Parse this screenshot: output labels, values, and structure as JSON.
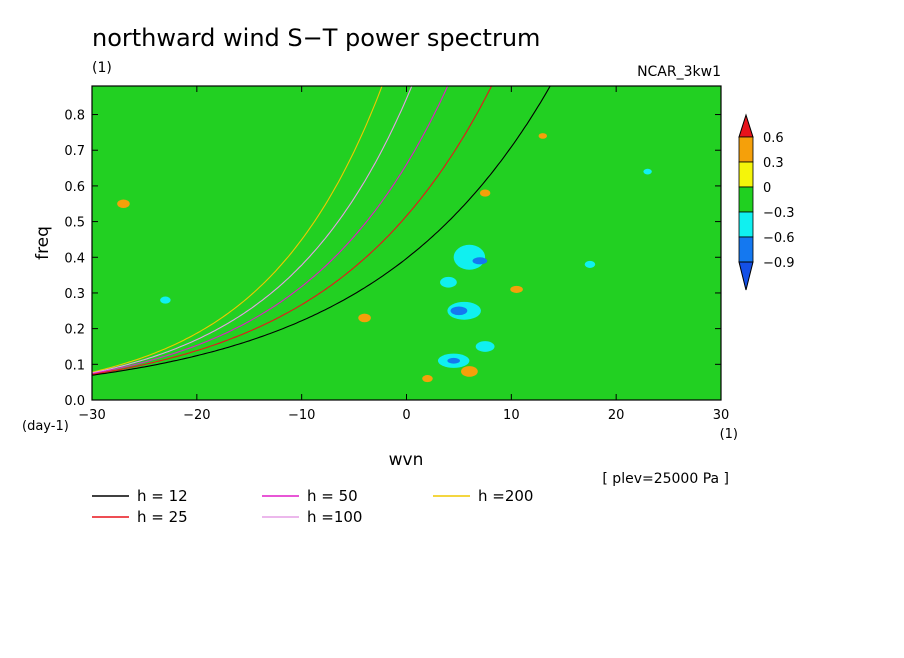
{
  "chart_data": {
    "type": "heatmap",
    "title": "northward wind S−T power spectrum",
    "units_label": "(1)",
    "model_label": "NCAR_3kw1",
    "xlabel": "wvn",
    "ylabel": "freq",
    "x_units": "(1)",
    "y_units": "(day-1)",
    "xlim": [
      -30,
      30
    ],
    "ylim": [
      0,
      0.88
    ],
    "x_ticks": [
      "−30",
      "−20",
      "−10",
      "0",
      "10",
      "20",
      "30"
    ],
    "y_ticks": [
      "0.0",
      "0.1",
      "0.2",
      "0.3",
      "0.4",
      "0.5",
      "0.6",
      "0.7",
      "0.8"
    ],
    "x_tick_values": [
      -30,
      -20,
      -10,
      0,
      10,
      20,
      30
    ],
    "y_tick_values": [
      0,
      0.1,
      0.2,
      0.3,
      0.4,
      0.5,
      0.6,
      0.7,
      0.8
    ],
    "level_note": "[ plev=25000 Pa ]",
    "colorbar": {
      "labels": [
        "0.6",
        "0.3",
        "0",
        "−0.3",
        "−0.6",
        "−0.9"
      ],
      "levels": [
        0.6,
        0.3,
        0,
        -0.3,
        -0.6,
        -0.9
      ],
      "colors": [
        "#e8141c",
        "#f5a00a",
        "#f5f50a",
        "#20d020",
        "#10f0f0",
        "#1478f0",
        "#1450e6"
      ]
    },
    "dispersion_curves": [
      {
        "name": "h = 12",
        "h": 12,
        "color": "#000000"
      },
      {
        "name": "h = 25",
        "h": 25,
        "color": "#e8141c"
      },
      {
        "name": "h = 50",
        "h": 50,
        "color": "#e01ec8"
      },
      {
        "name": "h =100",
        "h": 100,
        "color": "#e6a0e6"
      },
      {
        "name": "h =200",
        "h": 200,
        "color": "#f0c800"
      }
    ]
  }
}
